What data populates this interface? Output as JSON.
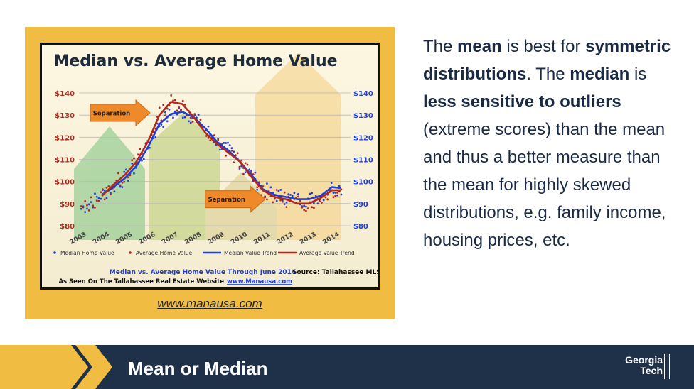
{
  "slide": {
    "link_text": "www.manausa.com",
    "body": {
      "p1": "The ",
      "b1": "mean",
      "p2": " is best for ",
      "b2": "symmetric distributions",
      "p3": ". The ",
      "b3": "median",
      "p4": " is ",
      "b4": "less sensitive to outliers",
      "p5": " (extreme scores) than the mean and thus a better measure than the mean for highly skewed distributions, e.g. family income, housing prices, etc."
    },
    "footer_title": "Mean or Median",
    "logo_line1": "Georgia",
    "logo_line2": "Tech"
  },
  "colors": {
    "gold": "#f0bd42",
    "navy": "#1f3049",
    "median_color": "#1f3fd6",
    "average_color": "#b0281e"
  },
  "chart_data": {
    "type": "scatter",
    "title": "Median vs. Average Home Value",
    "x_tick_labels": [
      "2003",
      "2004",
      "2005",
      "2006",
      "2007",
      "2008",
      "2009",
      "2010",
      "2011",
      "2012",
      "2013",
      "2014"
    ],
    "y_tick_labels": [
      "$80",
      "$90",
      "$100",
      "$110",
      "$120",
      "$130",
      "$140"
    ],
    "y_tick_values": [
      80,
      90,
      100,
      110,
      120,
      130,
      140
    ],
    "ylim": [
      80,
      140
    ],
    "xlim": [
      2003,
      2014.5
    ],
    "annotations": [
      {
        "text": "Separation",
        "x": 2004.7,
        "y": 131
      },
      {
        "text": "Separation",
        "x": 2009.7,
        "y": 92
      }
    ],
    "legend": [
      "Median Home Value",
      "Average Home Value",
      "Median Value Trend",
      "Average Value Trend"
    ],
    "footnote_line1": "Median vs. Average Home Value Through June 2014",
    "footnote_source": "Source: Tallahassee MLS",
    "footnote_line2": "As Seen On The Tallahassee Real Estate Website",
    "footnote_link": "www.Manausa.com",
    "series": [
      {
        "name": "Median Value Trend",
        "x": [
          2004,
          2004.5,
          2005,
          2005.5,
          2006,
          2006.5,
          2007,
          2007.5,
          2008,
          2008.5,
          2009,
          2009.5,
          2010,
          2010.5,
          2011,
          2011.5,
          2012,
          2012.5,
          2013,
          2013.5,
          2014,
          2014.4
        ],
        "values": [
          94,
          97.5,
          101.5,
          107,
          115.5,
          126,
          130.5,
          131.5,
          129,
          124,
          118,
          114,
          109,
          103,
          96.5,
          94,
          93,
          92,
          92,
          93.5,
          97.5,
          97
        ]
      },
      {
        "name": "Average Value Trend",
        "x": [
          2004,
          2004.5,
          2005,
          2005.5,
          2006,
          2006.5,
          2007,
          2007.5,
          2008,
          2008.5,
          2009,
          2009.5,
          2010,
          2010.5,
          2011,
          2011.5,
          2012,
          2012.5,
          2013,
          2013.5,
          2014,
          2014.4
        ],
        "values": [
          93.5,
          98.5,
          103,
          109,
          118,
          130,
          136,
          135,
          129,
          122,
          117,
          113,
          109,
          102,
          96,
          93,
          92,
          90,
          90,
          92.5,
          96,
          96
        ]
      }
    ]
  }
}
